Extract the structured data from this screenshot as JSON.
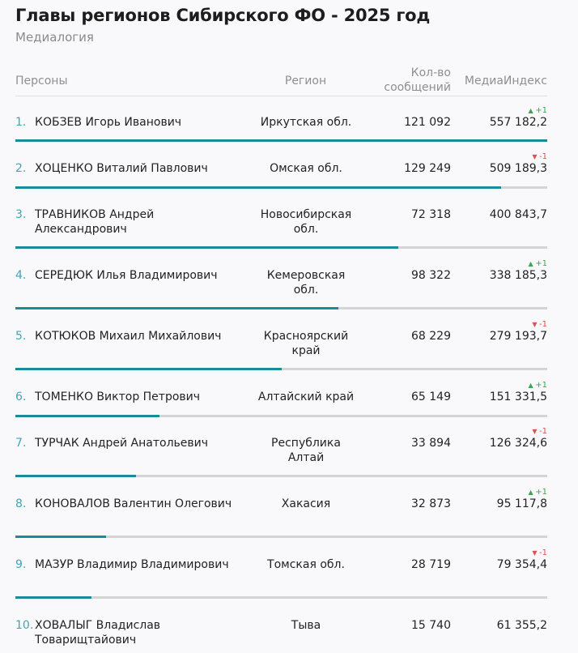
{
  "title": "Главы регионов Сибирского ФО - 2025 год",
  "subtitle": "Медиалогия",
  "chart_data": {
    "type": "table",
    "columns": [
      "Персоны",
      "Регион",
      "Кол-во сообщений",
      "МедиаИндекс"
    ],
    "rows": [
      {
        "rank": "1.",
        "name": "КОБЗЕВ Игорь Иванович",
        "region": "Иркутская обл.",
        "count": "121 092",
        "index": "557 182,2",
        "index_value": 557182.2,
        "change": "+1",
        "trend": "up"
      },
      {
        "rank": "2.",
        "name": "ХОЦЕНКО Виталий Павлович",
        "region": "Омская обл.",
        "count": "129 249",
        "index": "509 189,3",
        "index_value": 509189.3,
        "change": "-1",
        "trend": "down"
      },
      {
        "rank": "3.",
        "name": "ТРАВНИКОВ Андрей Александрович",
        "region": "Новосибирская обл.",
        "count": "72 318",
        "index": "400 843,7",
        "index_value": 400843.7,
        "change": "",
        "trend": "none"
      },
      {
        "rank": "4.",
        "name": "СЕРЕДЮК Илья Владимирович",
        "region": "Кемеровская обл.",
        "count": "98 322",
        "index": "338 185,3",
        "index_value": 338185.3,
        "change": "+1",
        "trend": "up"
      },
      {
        "rank": "5.",
        "name": "КОТЮКОВ Михаил Михайлович",
        "region": "Красноярский край",
        "count": "68 229",
        "index": "279 193,7",
        "index_value": 279193.7,
        "change": "-1",
        "trend": "down"
      },
      {
        "rank": "6.",
        "name": "ТОМЕНКО Виктор Петрович",
        "region": "Алтайский край",
        "count": "65 149",
        "index": "151 331,5",
        "index_value": 151331.5,
        "change": "+1",
        "trend": "up"
      },
      {
        "rank": "7.",
        "name": "ТУРЧАК Андрей Анатольевич",
        "region": "Республика Алтай",
        "count": "33 894",
        "index": "126 324,6",
        "index_value": 126324.6,
        "change": "-1",
        "trend": "down"
      },
      {
        "rank": "8.",
        "name": "КОНОВАЛОВ Валентин Олегович",
        "region": "Хакасия",
        "count": "32 873",
        "index": "95 117,8",
        "index_value": 95117.8,
        "change": "+1",
        "trend": "up"
      },
      {
        "rank": "9.",
        "name": "МАЗУР Владимир Владимирович",
        "region": "Томская обл.",
        "count": "28 719",
        "index": "79 354,4",
        "index_value": 79354.4,
        "change": "-1",
        "trend": "down"
      },
      {
        "rank": "10.",
        "name": "ХОВАЛЫГ Владислав Товарищтайович",
        "region": "Тыва",
        "count": "15 740",
        "index": "61 355,2",
        "index_value": 61355.2,
        "change": "",
        "trend": "none"
      }
    ]
  },
  "colors": {
    "bar_fill": "#1a8c99",
    "bar_track": "#d4d4d4",
    "rank": "#40a5b5",
    "up": "#3aa655",
    "down": "#d9534f"
  }
}
